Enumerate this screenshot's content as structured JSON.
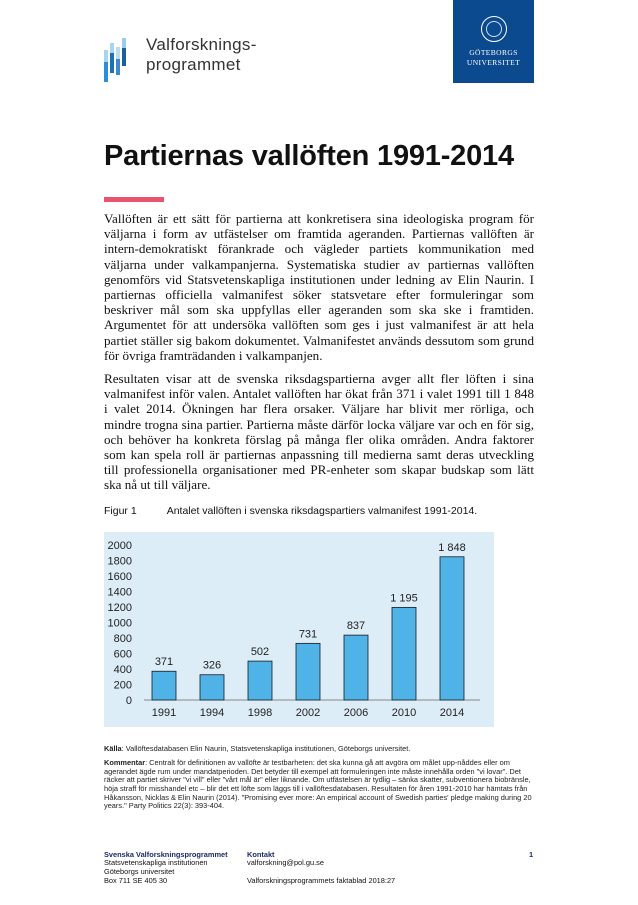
{
  "header": {
    "logo_text": [
      "Valforsknings-",
      "programmet"
    ],
    "university": [
      "GÖTEBORGS",
      "UNIVERSITET"
    ]
  },
  "title": "Partiernas vallöften 1991-2014",
  "paragraphs": [
    "Vallöften är ett sätt för partierna att konkretisera sina ideologiska program för väljarna i form av utfästelser om framtida ageranden. Partiernas vallöften är intern-demokratiskt förankrade och vägleder partiets kommunikation med väljarna under valkampanjerna. Systematiska studier av partiernas vallöften genomförs vid Statsvetenskapliga institutionen under ledning av Elin Naurin. I partiernas officiella valmanifest söker statsvetare efter formuleringar som beskriver mål som ska uppfyllas eller ageranden som ska ske i framtiden. Argumentet för att undersöka vallöften som ges i just valmanifest är att hela partiet ställer sig bakom dokumentet. Valmanifestet används dessutom som grund för övriga framträdanden i valkampanjen.",
    "Resultaten visar att de svenska riksdagspartierna avger allt fler löften i sina valmanifest inför valen. Antalet vallöften har ökat från 371 i valet 1991 till 1 848 i valet 2014. Ökningen har flera orsaker. Väljare har blivit mer rörliga, och mindre trogna sina partier. Partierna måste därför locka väljare var och en för sig, och behöver ha konkreta förslag på många fler olika områden. Andra faktorer som kan spela roll är partiernas anpassning till medierna samt deras utveckling till professionella organisationer med PR-enheter som skapar budskap som lätt ska nå ut till väljare."
  ],
  "figure": {
    "label": "Figur 1",
    "caption": "Antalet vallöften i svenska riksdagspartiers valmanifest 1991-2014."
  },
  "chart_data": {
    "type": "bar",
    "title": "Antalet vallöften i svenska riksdagspartiers valmanifest 1991-2014.",
    "categories": [
      "1991",
      "1994",
      "1998",
      "2002",
      "2006",
      "2010",
      "2014"
    ],
    "values": [
      371,
      326,
      502,
      731,
      837,
      1195,
      1848
    ],
    "data_labels": [
      "371",
      "326",
      "502",
      "731",
      "837",
      "1 195",
      "1 848"
    ],
    "yticks": [
      "0",
      "200",
      "400",
      "600",
      "800",
      "1000",
      "1200",
      "1400",
      "1600",
      "1800",
      "2000"
    ],
    "ylim": [
      0,
      2000
    ],
    "xlabel": "",
    "ylabel": "",
    "grid": false,
    "bar_color": "#4fb3e8",
    "bg_color": "#dcedf8"
  },
  "source": {
    "label": "Källa",
    "text": ": Vallöftesdatabasen Elin Naurin, Statsvetenskapliga institutionen, Göteborgs universitet."
  },
  "comment": {
    "label": "Kommentar",
    "text": ": Centralt för definitionen av vallöfte är testbarheten: det ska kunna gå att avgöra om målet upp-nåddes eller om agerandet ägde rum under mandatperioden. Det betyder till exempel att formuleringen inte måste innehålla orden \"vi lovar\". Det räcker att partiet skriver \"vi vill\" eller \"vårt mål är\" eller liknande. Om utfästelsen är tydlig – sänka skatter, subventionera biobränsle, höja straff för misshandel etc – blir det ett löfte som läggs till i vallöftesdatabasen. Resultaten för åren 1991-2010 har hämtats från Håkansson, Nicklas & Elin Naurin (2014). \"Promising ever more: An empirical account of Swedish parties' pledge making during 20 years.\" Party Politics 22(3): 393-404."
  },
  "footer": {
    "org": "Svenska Valforskningsprogrammet",
    "dept": "Statsvetenskapliga institutionen",
    "univ": "Göteborgs universitet",
    "address": "Box 711 SE 405 30",
    "contact_label": "Kontakt",
    "email": "valforskning@pol.gu.se",
    "series": "Valforskningsprogrammets faktablad 2018:27",
    "page": "1"
  }
}
